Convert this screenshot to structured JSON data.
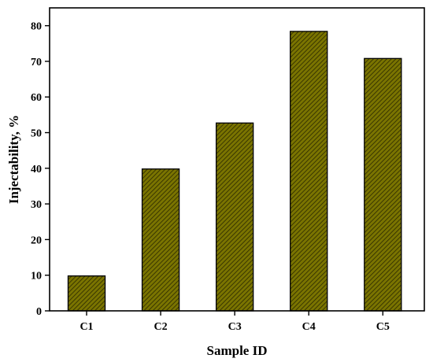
{
  "chart_data": {
    "type": "bar",
    "categories": [
      "C1",
      "C2",
      "C3",
      "C4",
      "C5"
    ],
    "values": [
      9.8,
      39.8,
      52.7,
      78.4,
      70.8
    ],
    "xlabel": "Sample ID",
    "ylabel": "Injectability, %",
    "ylim": [
      0,
      85
    ],
    "yticks": [
      0,
      10,
      20,
      30,
      40,
      50,
      60,
      70,
      80
    ],
    "bar_color": "#7a7400",
    "hatch_color": "#2a2800",
    "grid": false
  }
}
